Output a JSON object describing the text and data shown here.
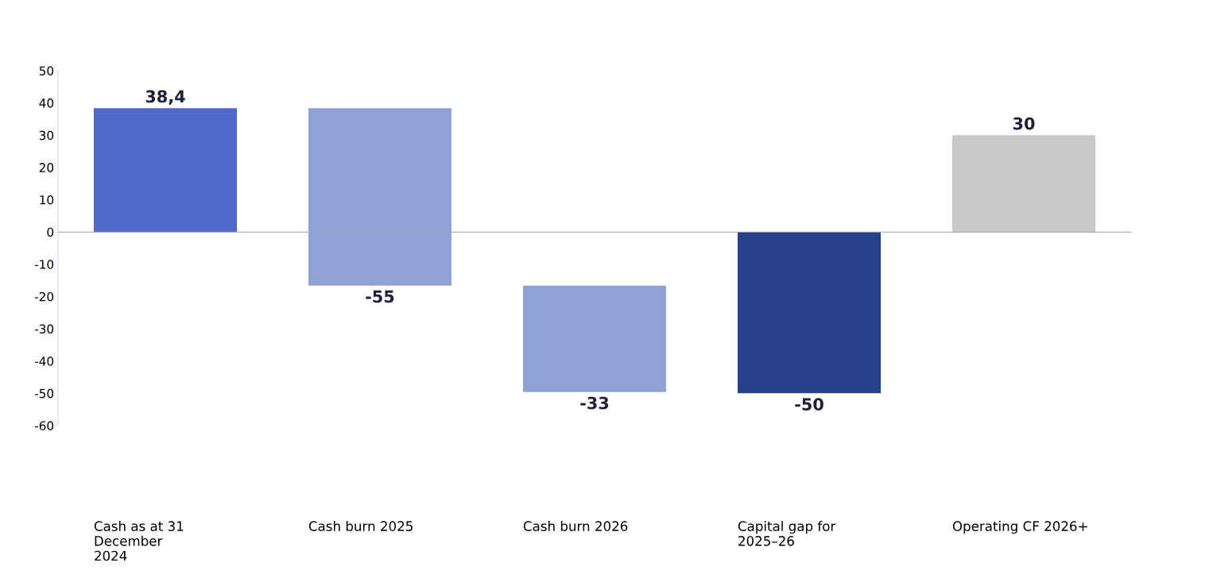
{
  "chart_data": {
    "type": "bar",
    "categories": [
      "Cash as at 31\nDecember\n2024",
      "Cash burn 2025",
      "Cash burn 2026",
      "Capital gap for\n2025–26",
      "Operating CF 2026+"
    ],
    "values": [
      38.4,
      -55,
      -33,
      -50,
      30
    ],
    "base": [
      0,
      38.4,
      -16.6,
      0,
      0
    ],
    "colors": [
      "#5068c8",
      "#8fa2d6",
      "#8fa2d6",
      "#26408a",
      "#c8c8c8"
    ],
    "value_labels": [
      "38,4",
      "-55",
      "-33",
      "-50",
      "30"
    ],
    "ylim": [
      -60,
      50
    ],
    "yticks": [
      -60,
      -50,
      -40,
      -30,
      -20,
      -10,
      0,
      10,
      20,
      30,
      40,
      50
    ],
    "legend": false
  }
}
